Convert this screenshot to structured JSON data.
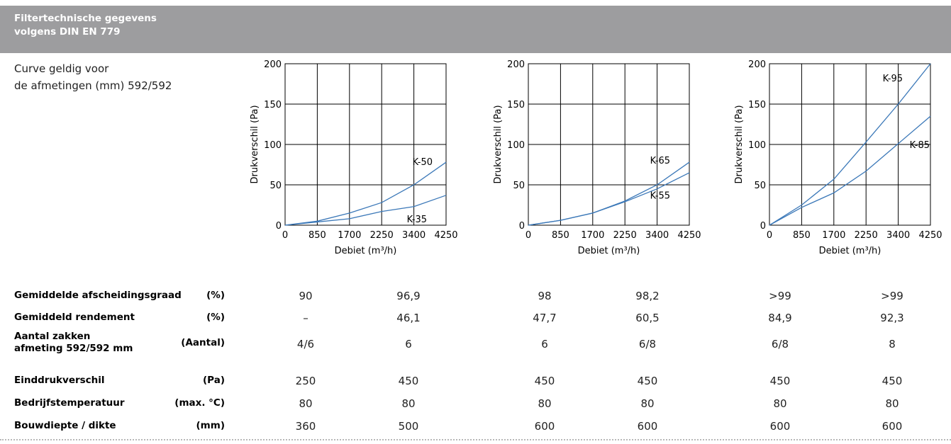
{
  "header": {
    "title_line1": "Filtertechnische gegevens",
    "title_line2": "volgens DIN EN 779"
  },
  "note": {
    "line1": "Curve geldig voor",
    "line2": "de afmetingen (mm) 592/592"
  },
  "chart_data": [
    {
      "type": "line",
      "xlabel": "Debiet (m³/h)",
      "ylabel": "Drukverschil (Pa)",
      "categories": [
        "0",
        "850",
        "1700",
        "2250",
        "3400",
        "4250"
      ],
      "y_ticks": [
        "0",
        "50",
        "100",
        "150",
        "200"
      ],
      "ylim": [
        0,
        200
      ],
      "grid": true,
      "series": [
        {
          "name": "K-50",
          "values": [
            0,
            5,
            15,
            28,
            50,
            78
          ]
        },
        {
          "name": "K-35",
          "values": [
            0,
            4,
            8,
            17,
            23,
            37
          ]
        }
      ]
    },
    {
      "type": "line",
      "xlabel": "Debiet (m³/h)",
      "ylabel": "Drukverschil (Pa)",
      "categories": [
        "0",
        "850",
        "1700",
        "2250",
        "3400",
        "4250"
      ],
      "y_ticks": [
        "0",
        "50",
        "100",
        "150",
        "200"
      ],
      "ylim": [
        0,
        200
      ],
      "grid": true,
      "series": [
        {
          "name": "K-65",
          "values": [
            0,
            6,
            15,
            30,
            50,
            78
          ]
        },
        {
          "name": "K-55",
          "values": [
            0,
            6,
            15,
            29,
            45,
            65
          ]
        }
      ]
    },
    {
      "type": "line",
      "xlabel": "Debiet (m³/h)",
      "ylabel": "Drukverschil (Pa)",
      "categories": [
        "0",
        "850",
        "1700",
        "2250",
        "3400",
        "4250"
      ],
      "y_ticks": [
        "0",
        "50",
        "100",
        "150",
        "200"
      ],
      "ylim": [
        0,
        200
      ],
      "grid": true,
      "series": [
        {
          "name": "K-95",
          "values": [
            0,
            25,
            57,
            103,
            150,
            200
          ]
        },
        {
          "name": "K-85",
          "values": [
            0,
            22,
            40,
            67,
            101,
            135
          ]
        }
      ]
    }
  ],
  "table": {
    "rows": [
      {
        "label": "Gemiddelde afscheidingsgraad",
        "unit": "(%)",
        "values": [
          "90",
          "96,9",
          "98",
          "98,2",
          ">99",
          ">99"
        ]
      },
      {
        "label": "Gemiddeld rendement",
        "unit": "(%)",
        "values": [
          "–",
          "46,1",
          "47,7",
          "60,5",
          "84,9",
          "92,3"
        ]
      },
      {
        "label": "Aantal zakken\nafmeting 592/592 mm",
        "unit": "(Aantal)",
        "values": [
          "4/6",
          "6",
          "6",
          "6/8",
          "6/8",
          "8"
        ]
      },
      {
        "label": "Einddrukverschil",
        "unit": "(Pa)",
        "values": [
          "250",
          "450",
          "450",
          "450",
          "450",
          "450"
        ]
      },
      {
        "label": "Bedrijfstemperatuur",
        "unit": "(max. °C)",
        "values": [
          "80",
          "80",
          "80",
          "80",
          "80",
          "80"
        ]
      },
      {
        "label": "Bouwdiepte / dikte",
        "unit": "(mm)",
        "values": [
          "360",
          "500",
          "600",
          "600",
          "600",
          "600"
        ]
      }
    ]
  },
  "colors": {
    "header_bg": "#9d9d9f",
    "series_line": "#3b78b8"
  }
}
